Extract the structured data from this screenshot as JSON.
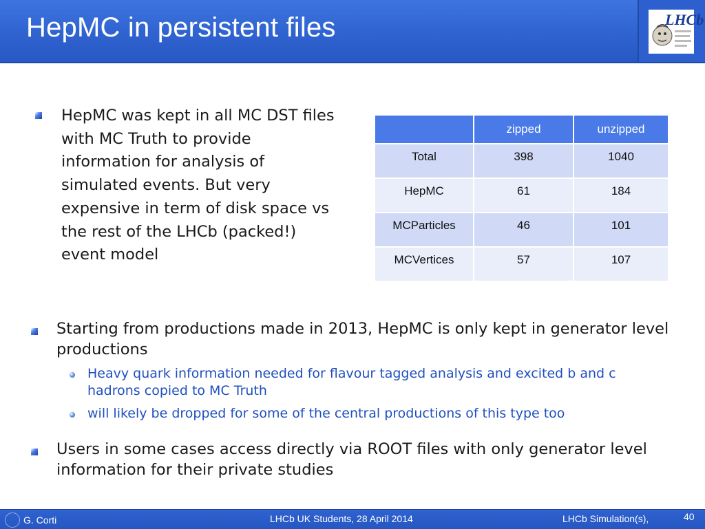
{
  "slide": {
    "title": "HepMC in persistent files",
    "logo_text": "LHCb"
  },
  "content": {
    "bullet1": "HepMC was kept in all MC DST files with MC Truth to provide information for analysis of simulated events. But very expensive in term of disk space vs the rest of the LHCb (packed!) event model",
    "bullet2": "Starting from productions made in 2013, HepMC is only kept in generator level productions",
    "sub1": "Heavy quark information needed for flavour tagged analysis and excited b and c hadrons copied to MC Truth",
    "sub2": "will likely be dropped for some of the central productions of this type too",
    "bullet3": "Users in some cases access directly via ROOT files with only generator level information for their private studies"
  },
  "table": {
    "headers": [
      "",
      "zipped",
      "unzipped"
    ],
    "rows": [
      [
        "Total",
        "398",
        "1040"
      ],
      [
        "HepMC",
        "61",
        "184"
      ],
      [
        "MCParticles",
        "46",
        "101"
      ],
      [
        "MCVertices",
        "57",
        "107"
      ]
    ]
  },
  "footer": {
    "author": "G. Corti",
    "event": "LHCb UK Students, 28 April 2014",
    "talk": "LHCb Simulation(s),",
    "page": "40"
  },
  "colors": {
    "title_bar": "#2f63d0",
    "table_header": "#4a7ae8",
    "table_row_odd": "#d0d9f5",
    "table_row_even": "#eaeefb",
    "sub_bullet_text": "#1f4fbf"
  }
}
